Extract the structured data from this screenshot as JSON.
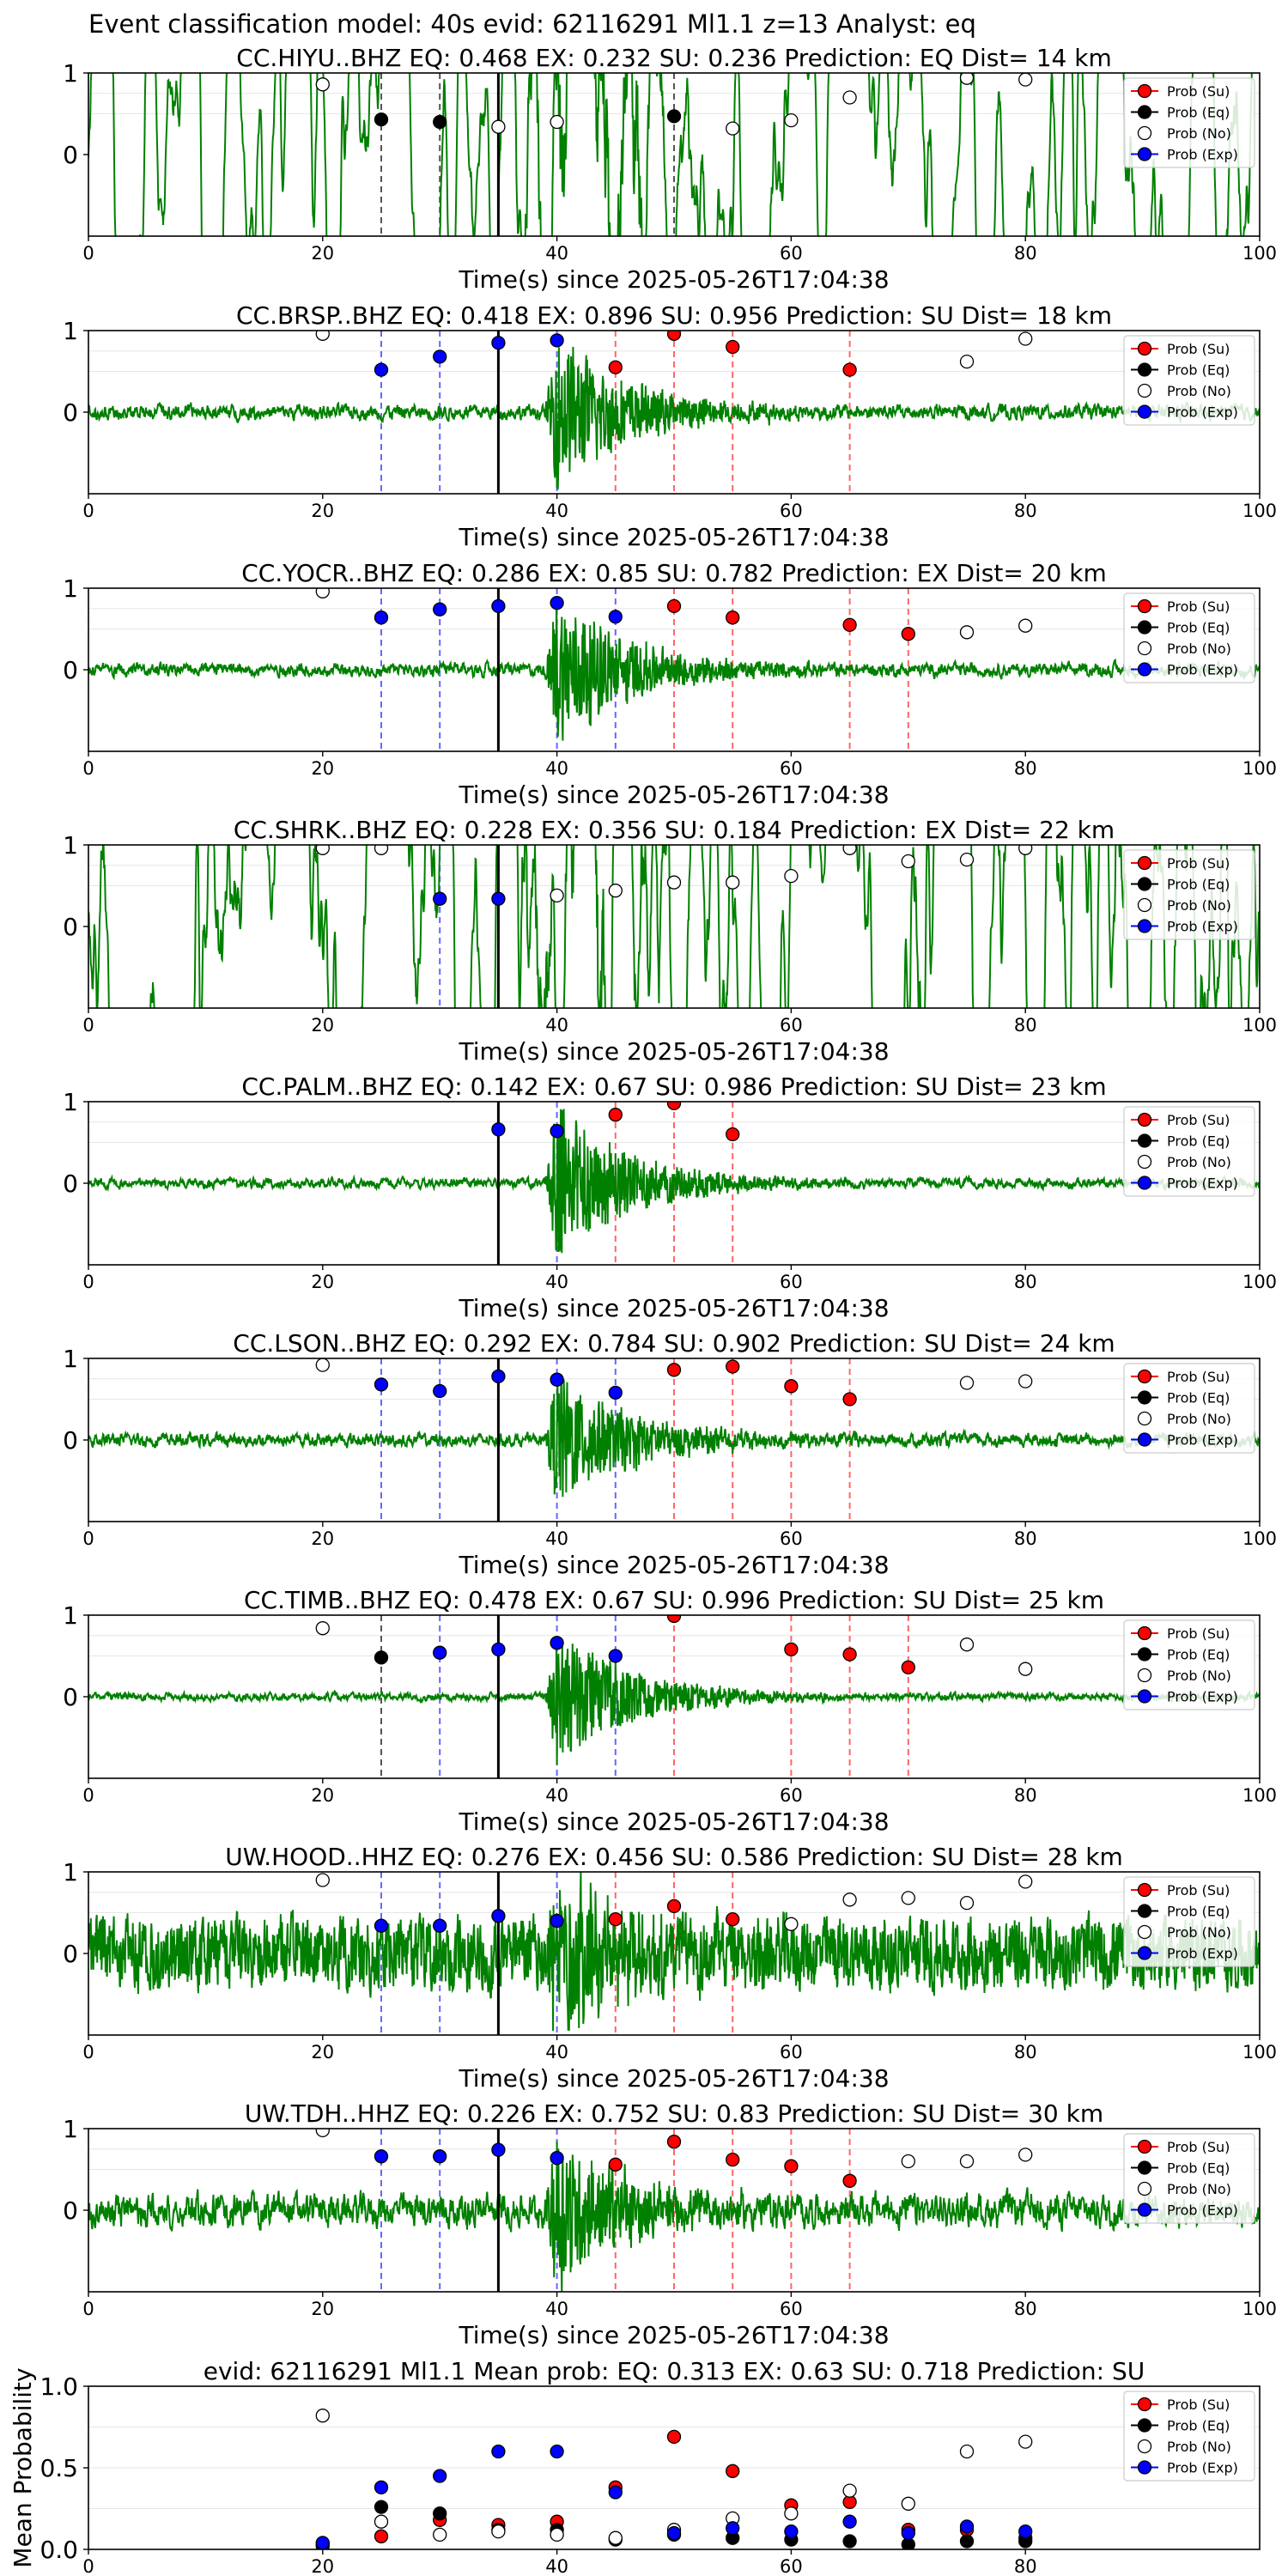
{
  "figure_title": "Event classification model: 40s evid: 62116291 Ml1.1 z=13 Analyst: eq",
  "colors": {
    "waveform": "#008000",
    "su": "#ff0000",
    "eq": "#000000",
    "no": "#ffffff",
    "exp": "#0000ff",
    "su_line": "#ff6666",
    "exp_line": "#6666ff",
    "eq_line": "#555555",
    "onset_line": "#000000"
  },
  "legend_labels": [
    "Prob (Su)",
    "Prob (Eq)",
    "Prob (No)",
    "Prob (Exp)"
  ],
  "xlabel": "Time(s) since 2025-05-26T17:04:38",
  "chart_data": [
    {
      "type": "scatter",
      "title": "CC.HIYU..BHZ   EQ: 0.468  EX: 0.232  SU: 0.236   Prediction: EQ    Dist= 14 km",
      "xlim": [
        0,
        100
      ],
      "ylim": [
        -1,
        1
      ],
      "xticks": [
        0,
        20,
        40,
        60,
        80,
        100
      ],
      "yticks": [
        0,
        1
      ],
      "onset": 35,
      "wave": {
        "style": "lowfreq",
        "amp": 0.62,
        "seed": 1
      },
      "lines": {
        "exp": [],
        "su": [],
        "eq": [
          25,
          30,
          50
        ]
      },
      "series": [
        {
          "name": "Prob (Su)",
          "x": [],
          "y": []
        },
        {
          "name": "Prob (Eq)",
          "x": [
            25,
            30,
            50
          ],
          "y": [
            0.43,
            0.4,
            0.47
          ]
        },
        {
          "name": "Prob (No)",
          "x": [
            20,
            35,
            40,
            55,
            60,
            65,
            75,
            80
          ],
          "y": [
            0.86,
            0.34,
            0.4,
            0.32,
            0.42,
            0.7,
            0.94,
            0.92
          ]
        },
        {
          "name": "Prob (Exp)",
          "x": [],
          "y": []
        }
      ]
    },
    {
      "type": "scatter",
      "title": "CC.BRSP..BHZ   EQ: 0.418  EX: 0.896  SU: 0.956   Prediction: SU    Dist= 18 km",
      "xlim": [
        0,
        100
      ],
      "ylim": [
        -1,
        1
      ],
      "xticks": [
        0,
        20,
        40,
        60,
        80,
        100
      ],
      "yticks": [
        0,
        1
      ],
      "onset": 35,
      "wave": {
        "style": "burst",
        "amp": 0.08,
        "burst_amp": 0.95,
        "seed": 2
      },
      "lines": {
        "exp": [
          25,
          30,
          40
        ],
        "su": [
          45,
          50,
          55,
          65
        ],
        "eq": []
      },
      "series": [
        {
          "name": "Prob (Su)",
          "x": [
            45,
            50,
            55,
            65
          ],
          "y": [
            0.55,
            0.96,
            0.8,
            0.52
          ]
        },
        {
          "name": "Prob (Eq)",
          "x": [],
          "y": []
        },
        {
          "name": "Prob (No)",
          "x": [
            20,
            75,
            80
          ],
          "y": [
            0.96,
            0.62,
            0.9
          ]
        },
        {
          "name": "Prob (Exp)",
          "x": [
            25,
            30,
            35,
            40
          ],
          "y": [
            0.52,
            0.68,
            0.85,
            0.88
          ]
        }
      ]
    },
    {
      "type": "scatter",
      "title": "CC.YOCR..BHZ   EQ: 0.286  EX: 0.85  SU: 0.782   Prediction: EX    Dist= 20 km",
      "xlim": [
        0,
        100
      ],
      "ylim": [
        -1,
        1
      ],
      "xticks": [
        0,
        20,
        40,
        60,
        80,
        100
      ],
      "yticks": [
        0,
        1
      ],
      "onset": 35,
      "wave": {
        "style": "burst",
        "amp": 0.07,
        "burst_amp": 0.95,
        "seed": 3
      },
      "lines": {
        "exp": [
          25,
          30,
          40,
          45
        ],
        "su": [
          50,
          55,
          65,
          70
        ],
        "eq": []
      },
      "series": [
        {
          "name": "Prob (Su)",
          "x": [
            50,
            55,
            65,
            70
          ],
          "y": [
            0.78,
            0.64,
            0.55,
            0.44
          ]
        },
        {
          "name": "Prob (Eq)",
          "x": [],
          "y": []
        },
        {
          "name": "Prob (No)",
          "x": [
            20,
            75,
            80
          ],
          "y": [
            0.96,
            0.46,
            0.54
          ]
        },
        {
          "name": "Prob (Exp)",
          "x": [
            25,
            30,
            35,
            40,
            45
          ],
          "y": [
            0.64,
            0.74,
            0.78,
            0.82,
            0.65
          ]
        }
      ]
    },
    {
      "type": "scatter",
      "title": "CC.SHRK..BHZ   EQ: 0.228  EX: 0.356  SU: 0.184   Prediction: EX    Dist= 22 km",
      "xlim": [
        0,
        100
      ],
      "ylim": [
        -1,
        1
      ],
      "xticks": [
        0,
        20,
        40,
        60,
        80,
        100
      ],
      "yticks": [
        0,
        1
      ],
      "onset": 35,
      "wave": {
        "style": "lowfreq",
        "amp": 0.85,
        "seed": 4
      },
      "lines": {
        "exp": [
          30
        ],
        "su": [],
        "eq": []
      },
      "series": [
        {
          "name": "Prob (Su)",
          "x": [],
          "y": []
        },
        {
          "name": "Prob (Eq)",
          "x": [],
          "y": []
        },
        {
          "name": "Prob (No)",
          "x": [
            20,
            25,
            40,
            45,
            50,
            55,
            60,
            65,
            70,
            75,
            80
          ],
          "y": [
            0.96,
            0.96,
            0.38,
            0.44,
            0.54,
            0.54,
            0.62,
            0.96,
            0.8,
            0.82,
            0.96
          ]
        },
        {
          "name": "Prob (Exp)",
          "x": [
            30,
            35
          ],
          "y": [
            0.34,
            0.34
          ]
        }
      ]
    },
    {
      "type": "scatter",
      "title": "CC.PALM..BHZ   EQ: 0.142  EX: 0.67  SU: 0.986   Prediction: SU    Dist= 23 km",
      "xlim": [
        0,
        100
      ],
      "ylim": [
        -1,
        1
      ],
      "xticks": [
        0,
        20,
        40,
        60,
        80,
        100
      ],
      "yticks": [
        0,
        1
      ],
      "onset": 35,
      "wave": {
        "style": "burst",
        "amp": 0.05,
        "burst_amp": 0.95,
        "seed": 5
      },
      "lines": {
        "exp": [
          40
        ],
        "su": [
          45,
          50,
          55
        ],
        "eq": []
      },
      "series": [
        {
          "name": "Prob (Su)",
          "x": [
            45,
            50,
            55
          ],
          "y": [
            0.84,
            0.98,
            0.6
          ]
        },
        {
          "name": "Prob (Eq)",
          "x": [],
          "y": []
        },
        {
          "name": "Prob (No)",
          "x": [],
          "y": []
        },
        {
          "name": "Prob (Exp)",
          "x": [
            35,
            40
          ],
          "y": [
            0.66,
            0.64
          ]
        }
      ]
    },
    {
      "type": "scatter",
      "title": "CC.LSON..BHZ   EQ: 0.292  EX: 0.784  SU: 0.902   Prediction: SU    Dist= 24 km",
      "xlim": [
        0,
        100
      ],
      "ylim": [
        -1,
        1
      ],
      "xticks": [
        0,
        20,
        40,
        60,
        80,
        100
      ],
      "yticks": [
        0,
        1
      ],
      "onset": 35,
      "wave": {
        "style": "burst",
        "amp": 0.07,
        "burst_amp": 0.85,
        "seed": 6
      },
      "lines": {
        "exp": [
          25,
          30,
          40,
          45
        ],
        "su": [
          50,
          55,
          60,
          65
        ],
        "eq": []
      },
      "series": [
        {
          "name": "Prob (Su)",
          "x": [
            50,
            55,
            60,
            65
          ],
          "y": [
            0.86,
            0.9,
            0.66,
            0.5
          ]
        },
        {
          "name": "Prob (Eq)",
          "x": [],
          "y": []
        },
        {
          "name": "Prob (No)",
          "x": [
            20,
            75,
            80
          ],
          "y": [
            0.92,
            0.7,
            0.72
          ]
        },
        {
          "name": "Prob (Exp)",
          "x": [
            25,
            30,
            35,
            40,
            45
          ],
          "y": [
            0.68,
            0.6,
            0.78,
            0.74,
            0.58
          ]
        }
      ]
    },
    {
      "type": "scatter",
      "title": "CC.TIMB..BHZ   EQ: 0.478  EX: 0.67  SU: 0.996   Prediction: SU    Dist= 25 km",
      "xlim": [
        0,
        100
      ],
      "ylim": [
        -1,
        1
      ],
      "xticks": [
        0,
        20,
        40,
        60,
        80,
        100
      ],
      "yticks": [
        0,
        1
      ],
      "onset": 35,
      "wave": {
        "style": "burst",
        "amp": 0.04,
        "burst_amp": 0.85,
        "seed": 7
      },
      "lines": {
        "exp": [
          30,
          40,
          45
        ],
        "su": [
          50,
          60,
          65,
          70
        ],
        "eq": [
          25
        ]
      },
      "series": [
        {
          "name": "Prob (Su)",
          "x": [
            50,
            60,
            65,
            70
          ],
          "y": [
            0.99,
            0.58,
            0.52,
            0.36
          ]
        },
        {
          "name": "Prob (Eq)",
          "x": [
            25
          ],
          "y": [
            0.48
          ]
        },
        {
          "name": "Prob (No)",
          "x": [
            20,
            75,
            80
          ],
          "y": [
            0.84,
            0.64,
            0.34
          ]
        },
        {
          "name": "Prob (Exp)",
          "x": [
            30,
            35,
            40,
            45
          ],
          "y": [
            0.54,
            0.58,
            0.66,
            0.5
          ]
        }
      ]
    },
    {
      "type": "scatter",
      "title": "UW.HOOD..HHZ   EQ: 0.276  EX: 0.456  SU: 0.586   Prediction: SU    Dist= 28 km",
      "xlim": [
        0,
        100
      ],
      "ylim": [
        -1,
        1
      ],
      "xticks": [
        0,
        20,
        40,
        60,
        80,
        100
      ],
      "yticks": [
        0,
        1
      ],
      "onset": 35,
      "wave": {
        "style": "noisy",
        "amp": 0.3,
        "burst_amp": 0.95,
        "seed": 8
      },
      "lines": {
        "exp": [
          25,
          30,
          40
        ],
        "su": [
          45,
          50,
          55
        ],
        "eq": []
      },
      "series": [
        {
          "name": "Prob (Su)",
          "x": [
            45,
            50,
            55
          ],
          "y": [
            0.42,
            0.58,
            0.42
          ]
        },
        {
          "name": "Prob (Eq)",
          "x": [],
          "y": []
        },
        {
          "name": "Prob (No)",
          "x": [
            20,
            60,
            65,
            70,
            75,
            80
          ],
          "y": [
            0.9,
            0.36,
            0.66,
            0.68,
            0.62,
            0.88
          ]
        },
        {
          "name": "Prob (Exp)",
          "x": [
            25,
            30,
            35,
            40
          ],
          "y": [
            0.34,
            0.34,
            0.46,
            0.4
          ]
        }
      ]
    },
    {
      "type": "scatter",
      "title": "UW.TDH..HHZ   EQ: 0.226  EX: 0.752  SU: 0.83   Prediction: SU    Dist= 30 km",
      "xlim": [
        0,
        100
      ],
      "ylim": [
        -1,
        1
      ],
      "xticks": [
        0,
        20,
        40,
        60,
        80,
        100
      ],
      "yticks": [
        0,
        1
      ],
      "onset": 35,
      "wave": {
        "style": "burst",
        "amp": 0.18,
        "burst_amp": 0.95,
        "seed": 9
      },
      "lines": {
        "exp": [
          25,
          30,
          40
        ],
        "su": [
          45,
          50,
          55,
          60,
          65
        ],
        "eq": []
      },
      "series": [
        {
          "name": "Prob (Su)",
          "x": [
            45,
            50,
            55,
            60,
            65
          ],
          "y": [
            0.56,
            0.84,
            0.62,
            0.54,
            0.36
          ]
        },
        {
          "name": "Prob (Eq)",
          "x": [],
          "y": []
        },
        {
          "name": "Prob (No)",
          "x": [
            20,
            70,
            75,
            80
          ],
          "y": [
            0.98,
            0.6,
            0.6,
            0.68
          ]
        },
        {
          "name": "Prob (Exp)",
          "x": [
            25,
            30,
            35,
            40
          ],
          "y": [
            0.66,
            0.66,
            0.74,
            0.64
          ]
        }
      ]
    },
    {
      "type": "scatter",
      "title": "evid: 62116291   Ml1.1    Mean prob:    EQ: 0.313  EX: 0.63  SU: 0.718   Prediction: SU",
      "ylabel": "Mean Probability",
      "xlim": [
        0,
        100
      ],
      "ylim": [
        0,
        1
      ],
      "xticks": [
        0,
        20,
        40,
        60,
        80
      ],
      "yticks": [
        0.0,
        0.5,
        1.0
      ],
      "ytick_labels": [
        "0.0",
        "0.5",
        "1.0"
      ],
      "series": [
        {
          "name": "Prob (Su)",
          "x": [
            20,
            25,
            30,
            35,
            40,
            45,
            50,
            55,
            60,
            65,
            70,
            75,
            80
          ],
          "y": [
            0.02,
            0.08,
            0.18,
            0.15,
            0.17,
            0.38,
            0.69,
            0.48,
            0.27,
            0.29,
            0.12,
            0.12,
            0.07
          ]
        },
        {
          "name": "Prob (Eq)",
          "x": [
            20,
            25,
            30,
            35,
            40,
            45,
            50,
            55,
            60,
            65,
            70,
            75,
            80
          ],
          "y": [
            0.03,
            0.26,
            0.22,
            0.12,
            0.12,
            0.06,
            0.09,
            0.07,
            0.06,
            0.05,
            0.03,
            0.05,
            0.05
          ]
        },
        {
          "name": "Prob (No)",
          "x": [
            20,
            25,
            30,
            35,
            40,
            45,
            50,
            55,
            60,
            65,
            70,
            75,
            80
          ],
          "y": [
            0.82,
            0.17,
            0.09,
            0.11,
            0.09,
            0.07,
            0.12,
            0.19,
            0.22,
            0.36,
            0.28,
            0.6,
            0.66
          ]
        },
        {
          "name": "Prob (Exp)",
          "x": [
            20,
            25,
            30,
            35,
            40,
            45,
            50,
            55,
            60,
            65,
            70,
            75,
            80
          ],
          "y": [
            0.04,
            0.38,
            0.45,
            0.6,
            0.6,
            0.35,
            0.1,
            0.13,
            0.11,
            0.17,
            0.1,
            0.14,
            0.11
          ]
        }
      ]
    }
  ]
}
